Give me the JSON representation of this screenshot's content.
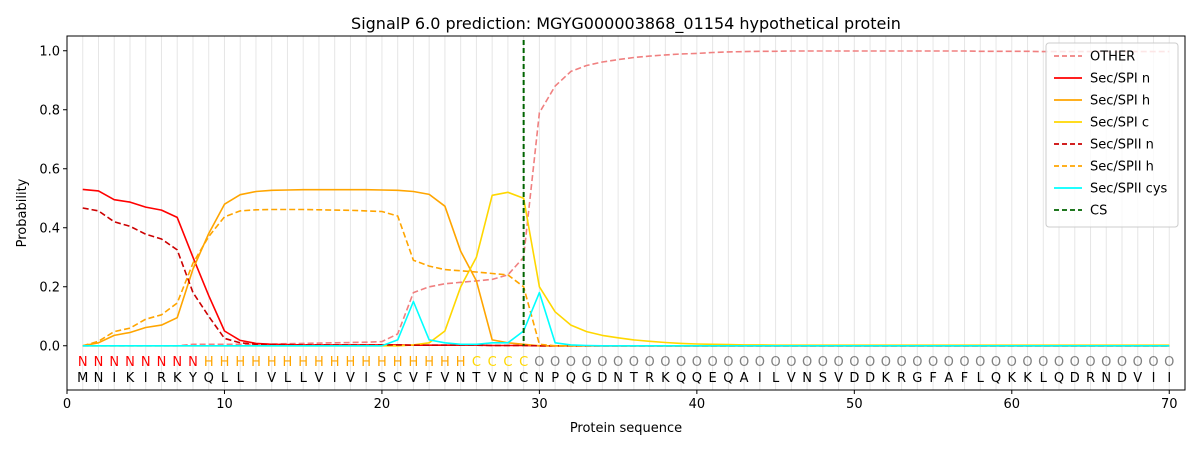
{
  "chart_data": {
    "type": "line",
    "title": "SignalP 6.0 prediction: MGYG000003868_01154 hypothetical protein",
    "xlabel": "Protein sequence",
    "ylabel": "Probability",
    "xlim": [
      0,
      71
    ],
    "ylim": [
      -0.15,
      1.05
    ],
    "x_ticks": [
      0,
      10,
      20,
      30,
      40,
      50,
      60,
      70
    ],
    "y_ticks": [
      0.0,
      0.2,
      0.4,
      0.6,
      0.8,
      1.0
    ],
    "x_tick_labels": [
      "0",
      "10",
      "20",
      "30",
      "40",
      "50",
      "60",
      "70"
    ],
    "y_tick_labels": [
      "0.0",
      "0.2",
      "0.4",
      "0.6",
      "0.8",
      "1.0"
    ],
    "grid": "vertical lines at every residue",
    "legend_position": "top-right",
    "sequence": [
      "M",
      "N",
      "I",
      "K",
      "I",
      "R",
      "K",
      "Y",
      "Q",
      "L",
      "L",
      "I",
      "V",
      "L",
      "L",
      "V",
      "I",
      "V",
      "I",
      "S",
      "C",
      "V",
      "F",
      "V",
      "N",
      "T",
      "V",
      "N",
      "C",
      "N",
      "P",
      "Q",
      "G",
      "D",
      "N",
      "T",
      "R",
      "K",
      "Q",
      "Q",
      "E",
      "Q",
      "A",
      "I",
      "L",
      "V",
      "N",
      "S",
      "V",
      "D",
      "D",
      "K",
      "R",
      "G",
      "F",
      "A",
      "F",
      "L",
      "Q",
      "K",
      "K",
      "L",
      "Q",
      "D",
      "R",
      "N",
      "D",
      "V",
      "I",
      "I"
    ],
    "region_labels": [
      "N",
      "N",
      "N",
      "N",
      "N",
      "N",
      "N",
      "N",
      "H",
      "H",
      "H",
      "H",
      "H",
      "H",
      "H",
      "H",
      "H",
      "H",
      "H",
      "H",
      "H",
      "H",
      "H",
      "H",
      "H",
      "C",
      "C",
      "C",
      "C",
      "O",
      "O",
      "O",
      "O",
      "O",
      "O",
      "O",
      "O",
      "O",
      "O",
      "O",
      "O",
      "O",
      "O",
      "O",
      "O",
      "O",
      "O",
      "O",
      "O",
      "O",
      "O",
      "O",
      "O",
      "O",
      "O",
      "O",
      "O",
      "O",
      "O",
      "O",
      "O",
      "O",
      "O",
      "O",
      "O",
      "O",
      "O",
      "O",
      "O",
      "O"
    ],
    "region_colors": {
      "N": "#ff0000",
      "H": "#ffa500",
      "C": "#ffd700",
      "O": "#808080"
    },
    "cleavage_site": 29,
    "series": [
      {
        "name": "OTHER",
        "color": "#f08080",
        "dash": true,
        "values": [
          0.0,
          0.0,
          0.0,
          0.0,
          0.0,
          0.0,
          0.0,
          0.005,
          0.005,
          0.005,
          0.005,
          0.005,
          0.006,
          0.007,
          0.008,
          0.009,
          0.01,
          0.011,
          0.012,
          0.014,
          0.04,
          0.18,
          0.2,
          0.21,
          0.215,
          0.22,
          0.225,
          0.24,
          0.3,
          0.79,
          0.88,
          0.93,
          0.95,
          0.962,
          0.97,
          0.977,
          0.982,
          0.986,
          0.989,
          0.991,
          0.994,
          0.996,
          0.997,
          0.998,
          0.998,
          0.999,
          0.999,
          0.999,
          0.999,
          0.999,
          0.999,
          0.999,
          0.999,
          0.999,
          0.999,
          0.999,
          0.999,
          0.998,
          0.998,
          0.998,
          0.998,
          0.997,
          0.997,
          0.997,
          0.997,
          0.997,
          0.997,
          0.997,
          0.997,
          0.997
        ]
      },
      {
        "name": "Sec/SPI n",
        "color": "#ff0000",
        "dash": false,
        "values": [
          0.53,
          0.525,
          0.495,
          0.487,
          0.47,
          0.46,
          0.435,
          0.3,
          0.17,
          0.05,
          0.018,
          0.008,
          0.005,
          0.004,
          0.003,
          0.003,
          0.003,
          0.003,
          0.003,
          0.003,
          0.003,
          0.002,
          0.002,
          0.002,
          0.002,
          0.002,
          0.001,
          0.001,
          0.001,
          0.0,
          0.0,
          0.0,
          0.0,
          0.0,
          0.0,
          0.0,
          0.0,
          0.0,
          0.0,
          0.0,
          0.0,
          0.0,
          0.0,
          0.0,
          0.0,
          0.0,
          0.0,
          0.0,
          0.0,
          0.0,
          0.0,
          0.0,
          0.0,
          0.0,
          0.0,
          0.0,
          0.0,
          0.0,
          0.0,
          0.0,
          0.0,
          0.0,
          0.0,
          0.0,
          0.0,
          0.0,
          0.0,
          0.0,
          0.0,
          0.0
        ]
      },
      {
        "name": "Sec/SPI h",
        "color": "#ffa500",
        "dash": false,
        "values": [
          0.0,
          0.01,
          0.035,
          0.045,
          0.062,
          0.07,
          0.095,
          0.26,
          0.38,
          0.48,
          0.512,
          0.523,
          0.527,
          0.528,
          0.529,
          0.529,
          0.529,
          0.529,
          0.529,
          0.528,
          0.527,
          0.523,
          0.513,
          0.473,
          0.32,
          0.22,
          0.02,
          0.01,
          0.005,
          0.0,
          0.0,
          0.0,
          0.0,
          0.0,
          0.0,
          0.0,
          0.0,
          0.0,
          0.0,
          0.0,
          0.0,
          0.0,
          0.0,
          0.0,
          0.0,
          0.0,
          0.0,
          0.0,
          0.0,
          0.0,
          0.0,
          0.0,
          0.0,
          0.0,
          0.0,
          0.0,
          0.0,
          0.0,
          0.0,
          0.0,
          0.0,
          0.0,
          0.0,
          0.0,
          0.0,
          0.0,
          0.0,
          0.0,
          0.0,
          0.0
        ]
      },
      {
        "name": "Sec/SPI c",
        "color": "#ffd700",
        "dash": false,
        "values": [
          0.0,
          0.0,
          0.0,
          0.0,
          0.0,
          0.0,
          0.0,
          0.0,
          0.0,
          0.0,
          0.0,
          0.0,
          0.0,
          0.0,
          0.0,
          0.0,
          0.0,
          0.0,
          0.0,
          0.0,
          0.0,
          0.003,
          0.01,
          0.05,
          0.2,
          0.3,
          0.51,
          0.52,
          0.5,
          0.2,
          0.115,
          0.07,
          0.048,
          0.035,
          0.027,
          0.02,
          0.015,
          0.011,
          0.008,
          0.006,
          0.005,
          0.004,
          0.003,
          0.003,
          0.002,
          0.002,
          0.002,
          0.002,
          0.002,
          0.002,
          0.002,
          0.002,
          0.002,
          0.002,
          0.002,
          0.002,
          0.002,
          0.002,
          0.002,
          0.002,
          0.002,
          0.002,
          0.002,
          0.002,
          0.002,
          0.002,
          0.002,
          0.002,
          0.002,
          0.002
        ]
      },
      {
        "name": "Sec/SPII n",
        "color": "#cc0000",
        "dash": true,
        "values": [
          0.467,
          0.457,
          0.42,
          0.405,
          0.378,
          0.362,
          0.325,
          0.18,
          0.1,
          0.025,
          0.01,
          0.005,
          0.004,
          0.003,
          0.003,
          0.003,
          0.003,
          0.003,
          0.003,
          0.003,
          0.003,
          0.002,
          0.002,
          0.002,
          0.002,
          0.002,
          0.001,
          0.001,
          0.001,
          0.0,
          0.0,
          0.0,
          0.0,
          0.0,
          0.0,
          0.0,
          0.0,
          0.0,
          0.0,
          0.0,
          0.0,
          0.0,
          0.0,
          0.0,
          0.0,
          0.0,
          0.0,
          0.0,
          0.0,
          0.0,
          0.0,
          0.0,
          0.0,
          0.0,
          0.0,
          0.0,
          0.0,
          0.0,
          0.0,
          0.0,
          0.0,
          0.0,
          0.0,
          0.0,
          0.0,
          0.0,
          0.0,
          0.0,
          0.0,
          0.0
        ]
      },
      {
        "name": "Sec/SPII h",
        "color": "#ffa500",
        "dash": true,
        "values": [
          0.0,
          0.015,
          0.048,
          0.06,
          0.09,
          0.105,
          0.145,
          0.28,
          0.37,
          0.437,
          0.457,
          0.461,
          0.462,
          0.462,
          0.462,
          0.461,
          0.46,
          0.459,
          0.457,
          0.455,
          0.44,
          0.29,
          0.27,
          0.258,
          0.254,
          0.25,
          0.245,
          0.24,
          0.2,
          0.005,
          0.0,
          0.0,
          0.0,
          0.0,
          0.0,
          0.0,
          0.0,
          0.0,
          0.0,
          0.0,
          0.0,
          0.0,
          0.0,
          0.0,
          0.0,
          0.0,
          0.0,
          0.0,
          0.0,
          0.0,
          0.0,
          0.0,
          0.0,
          0.0,
          0.0,
          0.0,
          0.0,
          0.0,
          0.0,
          0.0,
          0.0,
          0.0,
          0.0,
          0.0,
          0.0,
          0.0,
          0.0,
          0.0,
          0.0,
          0.0
        ]
      },
      {
        "name": "Sec/SPII cys",
        "color": "#00ffff",
        "dash": false,
        "values": [
          0.0,
          0.0,
          0.0,
          0.0,
          0.0,
          0.0,
          0.0,
          0.0,
          0.0,
          0.0,
          0.0,
          0.0,
          0.0,
          0.0,
          0.0,
          0.0,
          0.0,
          0.0,
          0.0,
          0.0,
          0.02,
          0.15,
          0.02,
          0.01,
          0.005,
          0.005,
          0.01,
          0.01,
          0.05,
          0.18,
          0.01,
          0.003,
          0.001,
          0.0,
          0.0,
          0.0,
          0.0,
          0.0,
          0.0,
          0.0,
          0.0,
          0.0,
          0.0,
          0.0,
          0.0,
          0.0,
          0.0,
          0.0,
          0.0,
          0.0,
          0.0,
          0.0,
          0.0,
          0.0,
          0.0,
          0.0,
          0.0,
          0.0,
          0.0,
          0.0,
          0.0,
          0.0,
          0.0,
          0.0,
          0.0,
          0.0,
          0.0,
          0.0,
          0.0,
          0.0
        ]
      }
    ],
    "cs_legend": {
      "name": "CS",
      "color": "#006400"
    }
  }
}
